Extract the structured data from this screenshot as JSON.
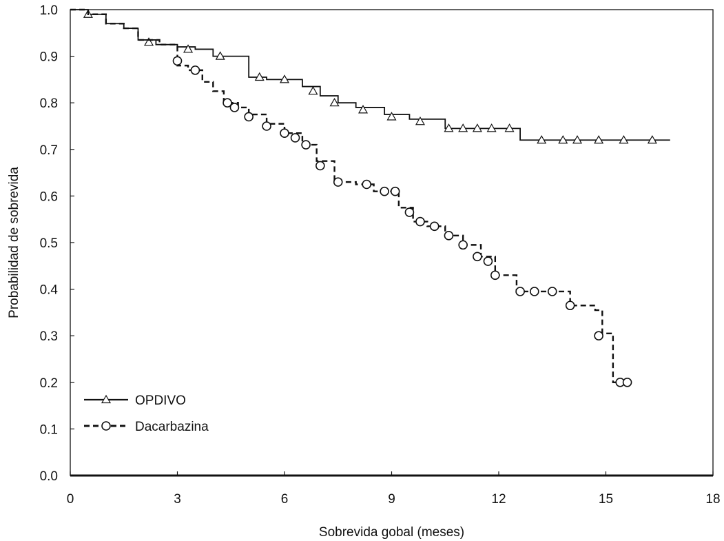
{
  "chart_data": {
    "type": "line",
    "subtype": "kaplan-meier-step",
    "title": "",
    "xlabel": "Sobrevida gobal (meses)",
    "ylabel": "Probabilidad de sobrevida",
    "xlim": [
      0,
      18
    ],
    "ylim": [
      0,
      1.0
    ],
    "xticks": [
      0,
      3,
      6,
      9,
      12,
      15,
      18
    ],
    "yticks": [
      0.0,
      0.1,
      0.2,
      0.3,
      0.4,
      0.5,
      0.6,
      0.7,
      0.8,
      0.9,
      1.0
    ],
    "xtick_labels": [
      "0",
      "3",
      "6",
      "9",
      "12",
      "15",
      "18"
    ],
    "ytick_labels": [
      "0.0",
      "0.1",
      "0.2",
      "0.3",
      "0.4",
      "0.5",
      "0.6",
      "0.7",
      "0.8",
      "0.9",
      "1.0"
    ],
    "grid": false,
    "legend_position": "bottom-left",
    "series": [
      {
        "name": "OPDIVO",
        "line_style": "solid",
        "marker": "triangle",
        "color": "#111111",
        "x": [
          0,
          0.5,
          1.0,
          1.5,
          1.9,
          2.4,
          3.0,
          3.5,
          4.0,
          5.0,
          5.5,
          6.5,
          7.0,
          7.5,
          8.0,
          8.8,
          9.5,
          10.5,
          12.6,
          16.8
        ],
        "y": [
          1.0,
          0.99,
          0.97,
          0.96,
          0.935,
          0.925,
          0.92,
          0.915,
          0.9,
          0.855,
          0.85,
          0.835,
          0.815,
          0.8,
          0.79,
          0.775,
          0.765,
          0.745,
          0.72,
          0.72
        ],
        "censor_x": [
          0.5,
          2.2,
          3.3,
          4.2,
          5.3,
          6.0,
          6.8,
          7.4,
          8.2,
          9.0,
          9.8,
          10.6,
          11.0,
          11.4,
          11.8,
          12.3,
          13.2,
          13.8,
          14.2,
          14.8,
          15.5,
          16.3
        ],
        "censor_y": [
          0.99,
          0.93,
          0.915,
          0.9,
          0.855,
          0.85,
          0.825,
          0.8,
          0.785,
          0.77,
          0.76,
          0.745,
          0.745,
          0.745,
          0.745,
          0.745,
          0.72,
          0.72,
          0.72,
          0.72,
          0.72,
          0.72
        ]
      },
      {
        "name": "Dacarbazina",
        "line_style": "dashed",
        "marker": "circle",
        "color": "#111111",
        "x": [
          0,
          0.5,
          1.0,
          1.5,
          1.9,
          2.5,
          3.0,
          3.3,
          3.7,
          4.0,
          4.3,
          4.7,
          5.0,
          5.5,
          6.0,
          6.5,
          6.9,
          7.4,
          8.0,
          8.5,
          9.2,
          9.6,
          10.0,
          10.5,
          11.0,
          11.5,
          11.9,
          12.5,
          13.0,
          14.0,
          14.7,
          14.9,
          15.2,
          15.7
        ],
        "y": [
          1.0,
          0.99,
          0.97,
          0.96,
          0.935,
          0.925,
          0.88,
          0.87,
          0.845,
          0.825,
          0.8,
          0.79,
          0.775,
          0.755,
          0.735,
          0.71,
          0.675,
          0.63,
          0.625,
          0.61,
          0.575,
          0.545,
          0.535,
          0.515,
          0.495,
          0.47,
          0.43,
          0.395,
          0.395,
          0.365,
          0.355,
          0.305,
          0.2,
          0.2
        ],
        "censor_x": [
          3.0,
          3.5,
          4.4,
          4.6,
          5.0,
          5.5,
          6.0,
          6.3,
          6.6,
          7.0,
          7.5,
          8.3,
          8.8,
          9.1,
          9.5,
          9.8,
          10.2,
          10.6,
          11.0,
          11.4,
          11.7,
          11.9,
          12.6,
          13.0,
          13.5,
          14.0,
          14.8,
          15.4,
          15.6
        ],
        "censor_y": [
          0.89,
          0.87,
          0.8,
          0.79,
          0.77,
          0.75,
          0.735,
          0.725,
          0.71,
          0.665,
          0.63,
          0.625,
          0.61,
          0.61,
          0.565,
          0.545,
          0.535,
          0.515,
          0.495,
          0.47,
          0.46,
          0.43,
          0.395,
          0.395,
          0.395,
          0.365,
          0.3,
          0.2,
          0.2
        ]
      }
    ]
  }
}
